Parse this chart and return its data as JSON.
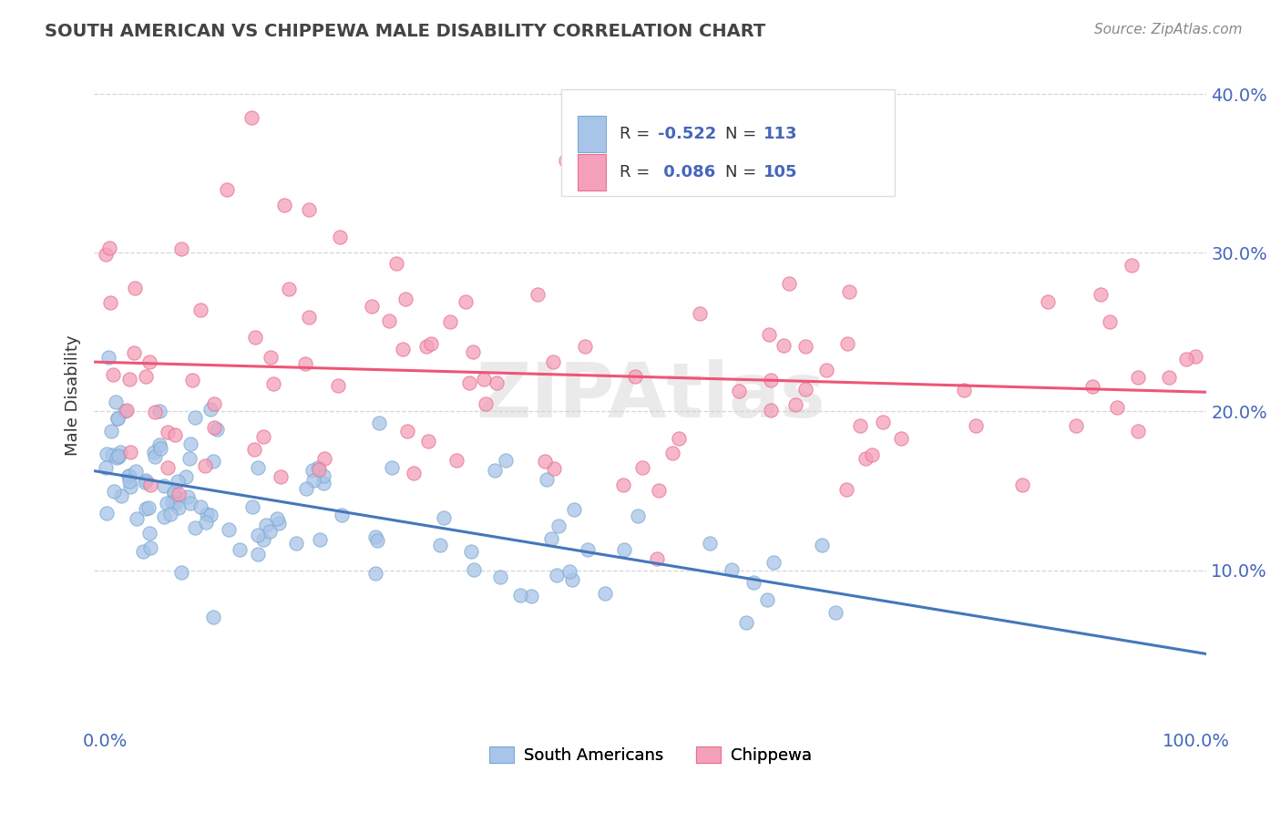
{
  "title": "SOUTH AMERICAN VS CHIPPEWA MALE DISABILITY CORRELATION CHART",
  "source": "Source: ZipAtlas.com",
  "ylabel": "Male Disability",
  "xlabel": "",
  "legend_bottom": [
    "South Americans",
    "Chippewa"
  ],
  "color_blue": "#a8c4e8",
  "color_blue_edge": "#7aaad0",
  "color_pink": "#f4a0b8",
  "color_pink_edge": "#e87090",
  "line_blue": "#4477bb",
  "line_pink": "#ee5577",
  "axis_color": "#4466bb",
  "watermark": "ZIPAtlas",
  "xlim": [
    -0.01,
    1.01
  ],
  "ylim": [
    0,
    0.42
  ],
  "xtick_pos": [
    0.0,
    1.0
  ],
  "xtick_labels": [
    "0.0%",
    "100.0%"
  ],
  "ytick_pos": [
    0.1,
    0.2,
    0.3,
    0.4
  ],
  "ytick_labels": [
    "10.0%",
    "20.0%",
    "30.0%",
    "40.0%"
  ],
  "r_blue": "-0.522",
  "r_pink": "0.086",
  "n_blue": "113",
  "n_pink": "105"
}
